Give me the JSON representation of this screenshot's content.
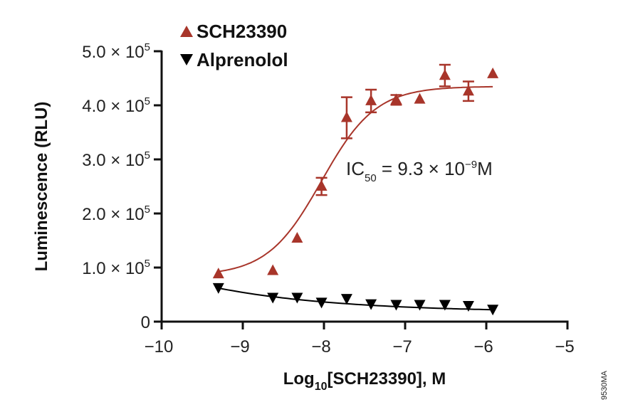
{
  "chart_data": {
    "type": "scatter",
    "xlabel": "Log10[SCH23390], M",
    "xlabel_main": "Log",
    "xlabel_sub": "10",
    "xlabel_rest": "[SCH23390], M",
    "ylabel": "Luminescence (RLU)",
    "xlim": [
      -10,
      -5
    ],
    "ylim": [
      0,
      500000
    ],
    "x_ticks": [
      -10,
      -9,
      -8,
      -7,
      -6,
      -5
    ],
    "x_tick_labels": [
      "−10",
      "−9",
      "−8",
      "−7",
      "−6",
      "−5"
    ],
    "y_ticks": [
      0,
      100000,
      200000,
      300000,
      400000,
      500000
    ],
    "y_tick_labels": [
      {
        "mant": "0",
        "exp": ""
      },
      {
        "mant": "1.0 × 10",
        "exp": "5"
      },
      {
        "mant": "2.0 × 10",
        "exp": "5"
      },
      {
        "mant": "3.0 × 10",
        "exp": "5"
      },
      {
        "mant": "4.0 × 10",
        "exp": "5"
      },
      {
        "mant": "5.0 × 10",
        "exp": "5"
      }
    ],
    "grid": false,
    "legend_placement": "top-left",
    "annotation": {
      "pre": "IC",
      "sub": "50",
      "mid": " = 9.3 × 10",
      "sup": "−9",
      "post": "M"
    },
    "figure_code": "9530MA",
    "series": [
      {
        "name": "SCH23390",
        "marker": "triangle-up",
        "color": "#a8352a",
        "x": [
          -9.3,
          -8.63,
          -8.33,
          -8.03,
          -7.72,
          -7.42,
          -7.11,
          -6.82,
          -6.51,
          -6.22,
          -5.92
        ],
        "y": [
          88000,
          94000,
          154000,
          250000,
          377000,
          408000,
          410000,
          411000,
          455000,
          426000,
          458000
        ],
        "error": [
          0,
          0,
          0,
          16000,
          38000,
          21000,
          9000,
          0,
          20000,
          18000,
          0
        ],
        "fit": {
          "model": "sigmoidal dose-response",
          "bottom": 85000,
          "top": 435000,
          "log_ic50": -8.03,
          "hill": 1.3
        }
      },
      {
        "name": "Alprenolol",
        "marker": "triangle-down",
        "color": "#000000",
        "x": [
          -9.3,
          -8.63,
          -8.33,
          -8.03,
          -7.72,
          -7.42,
          -7.11,
          -6.82,
          -6.51,
          -6.22,
          -5.92
        ],
        "y": [
          62000,
          44000,
          44000,
          35000,
          42000,
          32000,
          31000,
          31000,
          31000,
          29000,
          22000
        ],
        "error": [
          0,
          0,
          0,
          0,
          0,
          0,
          0,
          0,
          0,
          0,
          0
        ]
      }
    ]
  }
}
